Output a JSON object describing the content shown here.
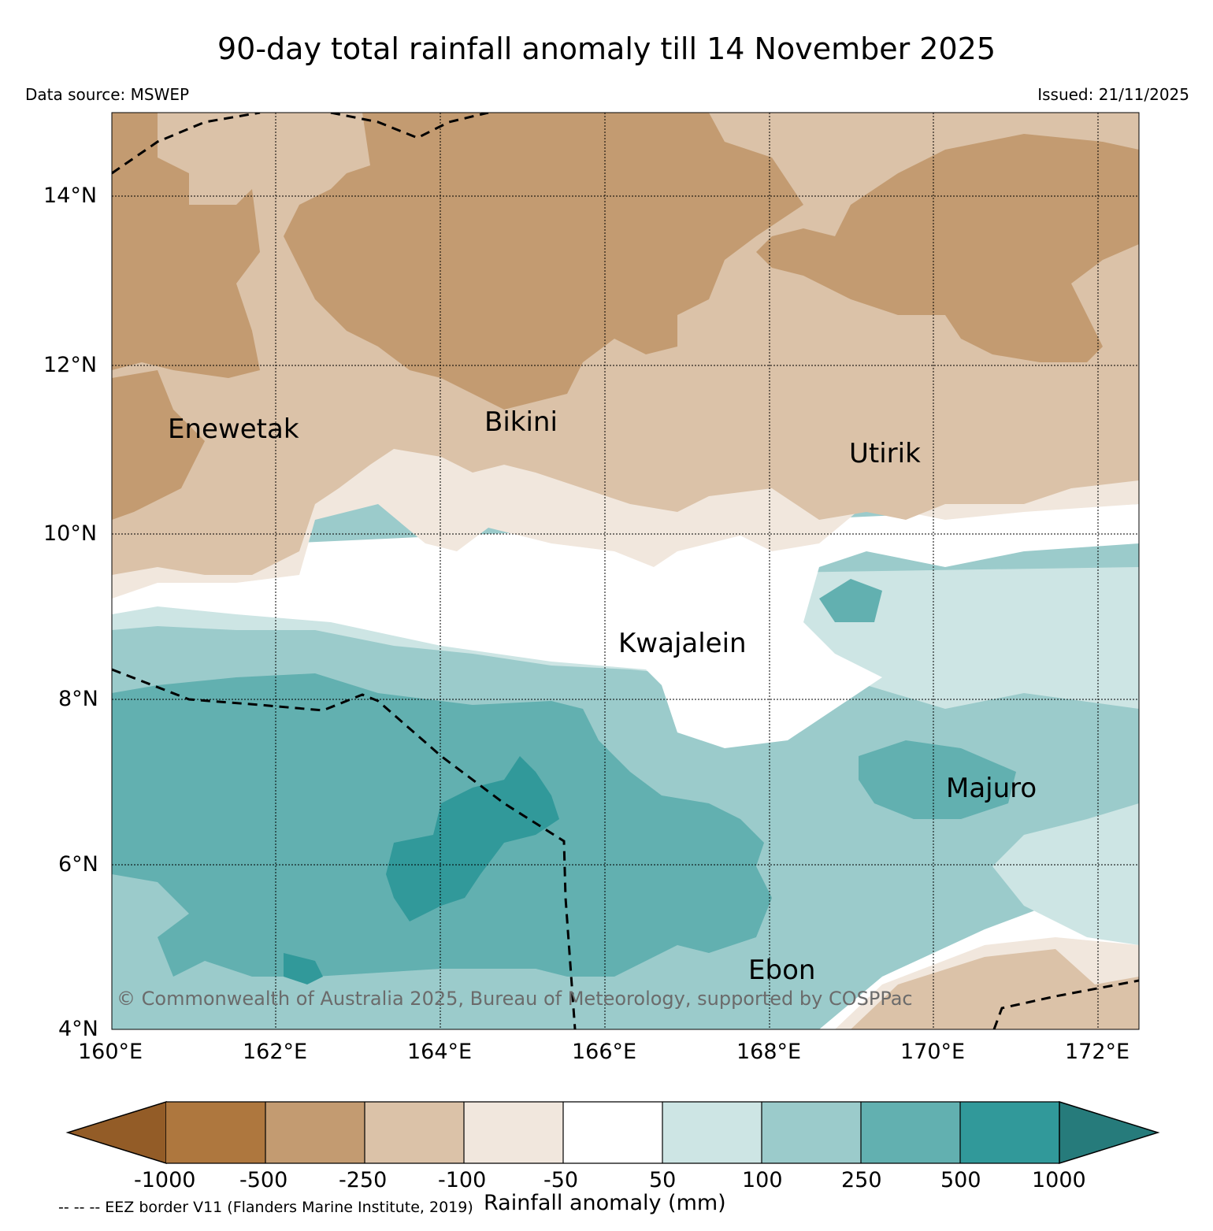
{
  "title": "90-day total rainfall anomaly till 14 November 2025",
  "data_source": "Data source: MSWEP",
  "issued": "Issued: 21/11/2025",
  "copyright": "© Commonwealth of Australia 2025, Bureau of Meteorology, supported by COSPPac",
  "eez_note": "-- -- -- EEZ border V11 (Flanders Marine Institute, 2019)",
  "map": {
    "lon_range": [
      160,
      172.5
    ],
    "lat_range": [
      4,
      14.9
    ],
    "lon_ticks": [
      "160°E",
      "162°E",
      "164°E",
      "166°E",
      "168°E",
      "170°E",
      "172°E"
    ],
    "lat_ticks": [
      "14°N",
      "12°N",
      "10°N",
      "8°N",
      "6°N",
      "4°N"
    ],
    "places": [
      {
        "name": "Enewetak",
        "lon": 162.4,
        "lat": 11.35
      },
      {
        "name": "Bikini",
        "lon": 165.5,
        "lat": 11.6
      },
      {
        "name": "Utirik",
        "lon": 169.85,
        "lat": 11.25
      },
      {
        "name": "Kwajalein",
        "lon": 167.7,
        "lat": 8.7
      },
      {
        "name": "Majuro",
        "lon": 171.2,
        "lat": 7.1
      },
      {
        "name": "Ebon",
        "lon": 168.6,
        "lat": 4.6
      }
    ]
  },
  "colorbar": {
    "title": "Rainfall anomaly (mm)",
    "boundaries": [
      "-1000",
      "-500",
      "-250",
      "-100",
      "-50",
      "50",
      "100",
      "250",
      "500",
      "1000"
    ],
    "colors": {
      "below_min": "#935c27",
      "bins": [
        "#ae773e",
        "#c39b71",
        "#dbc2a8",
        "#f1e7dd",
        "#ffffff",
        "#cde5e4",
        "#9bcbcb",
        "#62b0b0",
        "#31999a"
      ],
      "above_max": "#267b7b"
    }
  }
}
